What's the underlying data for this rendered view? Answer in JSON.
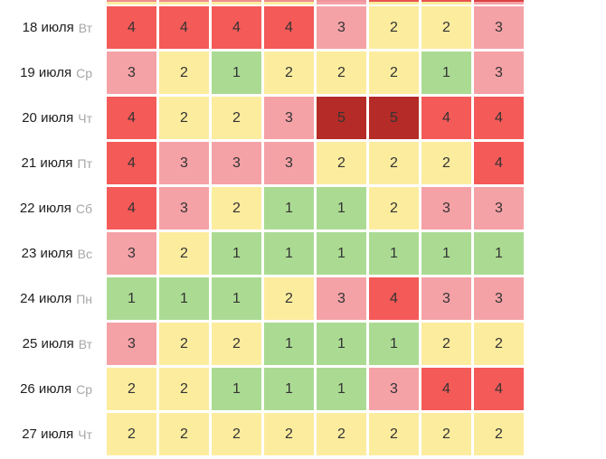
{
  "chart_data": {
    "type": "heatmap",
    "title": "",
    "rows": [
      {
        "date": "18 июля",
        "weekday": "Вт",
        "values": [
          4,
          4,
          4,
          4,
          3,
          2,
          2,
          3
        ]
      },
      {
        "date": "19 июля",
        "weekday": "Ср",
        "values": [
          3,
          2,
          1,
          2,
          2,
          2,
          1,
          3
        ]
      },
      {
        "date": "20 июля",
        "weekday": "Чт",
        "values": [
          4,
          2,
          2,
          3,
          5,
          5,
          4,
          4
        ]
      },
      {
        "date": "21 июля",
        "weekday": "Пт",
        "values": [
          4,
          3,
          3,
          3,
          2,
          2,
          2,
          4
        ]
      },
      {
        "date": "22 июля",
        "weekday": "Сб",
        "values": [
          4,
          3,
          2,
          1,
          1,
          2,
          3,
          3
        ]
      },
      {
        "date": "23 июля",
        "weekday": "Вс",
        "values": [
          3,
          2,
          1,
          1,
          1,
          1,
          1,
          1
        ]
      },
      {
        "date": "24 июля",
        "weekday": "Пн",
        "values": [
          1,
          1,
          1,
          2,
          3,
          4,
          3,
          3
        ]
      },
      {
        "date": "25 июля",
        "weekday": "Вт",
        "values": [
          3,
          2,
          2,
          1,
          1,
          1,
          2,
          2
        ]
      },
      {
        "date": "26 июля",
        "weekday": "Ср",
        "values": [
          2,
          2,
          1,
          1,
          1,
          3,
          4,
          4
        ]
      },
      {
        "date": "27 июля",
        "weekday": "Чт",
        "values": [
          2,
          2,
          2,
          2,
          2,
          2,
          2,
          2
        ]
      }
    ],
    "value_scale": [
      1,
      2,
      3,
      4,
      5
    ],
    "value_colors": {
      "1": "#abdb93",
      "2": "#fcec9e",
      "3": "#f5a2a7",
      "4": "#f45a58",
      "5": "#b42b27"
    },
    "cell_text_color": "#333333",
    "date_text_color": "#212121",
    "weekday_text_color": "#a6a6a6",
    "grid_gap_color": "#ffffff",
    "clipped_top_row": {
      "cell_colors": [
        "#fcec9e",
        "#fcec9e",
        "#fcec9e",
        "#fcec9e",
        "#f5a2a7",
        "#fcec9e",
        "#fcec9e",
        "#f5a2a7"
      ],
      "edge_colors": [
        "#ee8e8e",
        "#ee8e8e",
        "#ee8e8e",
        "#ee8e8e",
        "#f0959b",
        "#e9534f",
        "#e9534f",
        "#db4244"
      ]
    },
    "layout": {
      "columns": 8,
      "legend": "none",
      "axes": "none"
    }
  }
}
